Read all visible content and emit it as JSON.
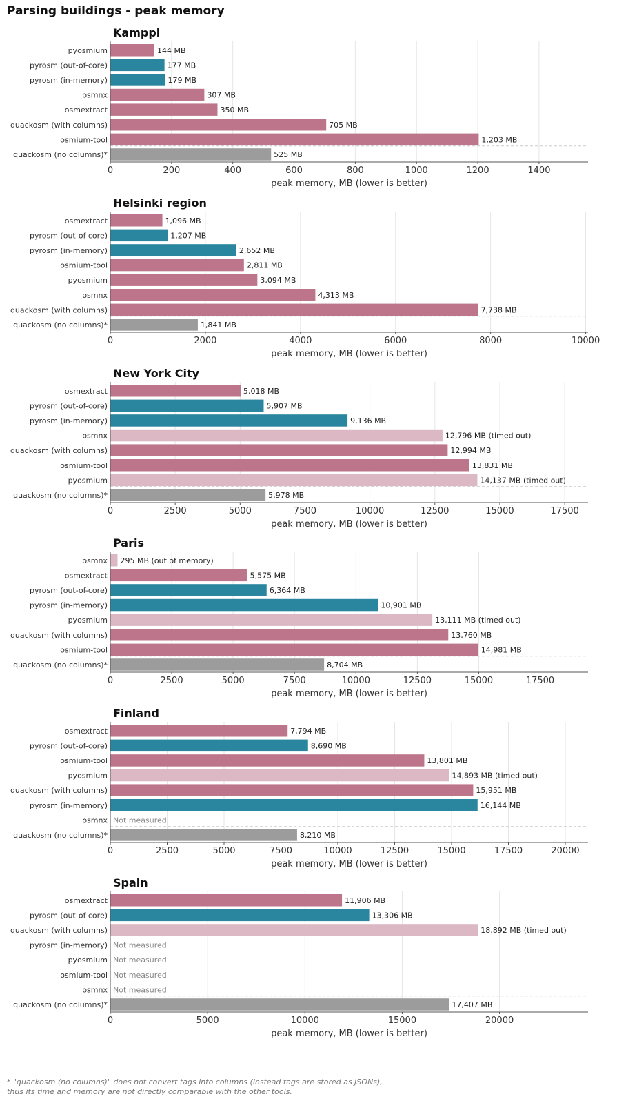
{
  "title": "Parsing buildings - peak memory",
  "footnote": [
    "* \"quackosm (no columns)\" does not convert tags into columns (instead tags are stored as JSONs),",
    "thus its time and memory are not directly comparable with the other tools."
  ],
  "colors": {
    "pink": "#bd758b",
    "pink_light": "#dcb8c4",
    "teal": "#2a869f",
    "grey": "#9c9c9c",
    "grid": "#e6e6e6",
    "axis": "#555555"
  },
  "chart_data": [
    {
      "type": "bar",
      "orientation": "horizontal",
      "title": "Kamppi",
      "xlabel": "peak memory, MB (lower is better)",
      "xlim": [
        0,
        1560
      ],
      "xticks": [
        0,
        200,
        400,
        600,
        800,
        1000,
        1200,
        1400
      ],
      "grid": "x",
      "categories": [
        "pyosmium",
        "pyrosm (out-of-core)",
        "pyrosm (in-memory)",
        "osmnx",
        "osmextract",
        "quackosm (with columns)",
        "osmium-tool",
        "quackosm (no columns)*"
      ],
      "values": [
        144,
        177,
        179,
        307,
        350,
        705,
        1203,
        525
      ],
      "labels": [
        "144 MB",
        "177 MB",
        "179 MB",
        "307 MB",
        "350 MB",
        "705 MB",
        "1,203 MB",
        "525 MB"
      ],
      "colors": [
        "pink",
        "teal",
        "teal",
        "pink",
        "pink",
        "pink",
        "pink",
        "grey"
      ]
    },
    {
      "type": "bar",
      "orientation": "horizontal",
      "title": "Helsinki region",
      "xlabel": "peak memory, MB (lower is better)",
      "xlim": [
        0,
        10050
      ],
      "xticks": [
        0,
        2000,
        4000,
        6000,
        8000,
        10000
      ],
      "grid": "x",
      "categories": [
        "osmextract",
        "pyrosm (out-of-core)",
        "pyrosm (in-memory)",
        "osmium-tool",
        "pyosmium",
        "osmnx",
        "quackosm (with columns)",
        "quackosm (no columns)*"
      ],
      "values": [
        1096,
        1207,
        2652,
        2811,
        3094,
        4313,
        7738,
        1841
      ],
      "labels": [
        "1,096 MB",
        "1,207 MB",
        "2,652 MB",
        "2,811 MB",
        "3,094 MB",
        "4,313 MB",
        "7,738 MB",
        "1,841 MB"
      ],
      "colors": [
        "pink",
        "teal",
        "teal",
        "pink",
        "pink",
        "pink",
        "pink",
        "grey"
      ]
    },
    {
      "type": "bar",
      "orientation": "horizontal",
      "title": "New York City",
      "xlabel": "peak memory, MB (lower is better)",
      "xlim": [
        0,
        18400
      ],
      "xticks": [
        0,
        2500,
        5000,
        7500,
        10000,
        12500,
        15000,
        17500
      ],
      "grid": "x",
      "categories": [
        "osmextract",
        "pyrosm (out-of-core)",
        "pyrosm (in-memory)",
        "osmnx",
        "quackosm (with columns)",
        "osmium-tool",
        "pyosmium",
        "quackosm (no columns)*"
      ],
      "values": [
        5018,
        5907,
        9136,
        12796,
        12994,
        13831,
        14137,
        5978
      ],
      "labels": [
        "5,018 MB",
        "5,907 MB",
        "9,136 MB",
        "12,796 MB (timed out)",
        "12,994 MB",
        "13,831 MB",
        "14,137 MB (timed out)",
        "5,978 MB"
      ],
      "colors": [
        "pink",
        "teal",
        "teal",
        "pink_light",
        "pink",
        "pink",
        "pink_light",
        "grey"
      ]
    },
    {
      "type": "bar",
      "orientation": "horizontal",
      "title": "Paris",
      "xlabel": "peak memory, MB (lower is better)",
      "xlim": [
        0,
        19450
      ],
      "xticks": [
        0,
        2500,
        5000,
        7500,
        10000,
        12500,
        15000,
        17500
      ],
      "grid": "x",
      "categories": [
        "osmnx",
        "osmextract",
        "pyrosm (out-of-core)",
        "pyrosm (in-memory)",
        "pyosmium",
        "quackosm (with columns)",
        "osmium-tool",
        "quackosm (no columns)*"
      ],
      "values": [
        295,
        5575,
        6364,
        10901,
        13111,
        13760,
        14981,
        8704
      ],
      "labels": [
        "295 MB (out of memory)",
        "5,575 MB",
        "6,364 MB",
        "10,901 MB",
        "13,111 MB (timed out)",
        "13,760 MB",
        "14,981 MB",
        "8,704 MB"
      ],
      "colors": [
        "pink_light",
        "pink",
        "teal",
        "teal",
        "pink_light",
        "pink",
        "pink",
        "grey"
      ]
    },
    {
      "type": "bar",
      "orientation": "horizontal",
      "title": "Finland",
      "xlabel": "peak memory, MB (lower is better)",
      "xlim": [
        0,
        21000
      ],
      "xticks": [
        0,
        2500,
        5000,
        7500,
        10000,
        12500,
        15000,
        17500,
        20000
      ],
      "grid": "x",
      "categories": [
        "osmextract",
        "pyrosm (out-of-core)",
        "osmium-tool",
        "pyosmium",
        "quackosm (with columns)",
        "pyrosm (in-memory)",
        "osmnx",
        "quackosm (no columns)*"
      ],
      "values": [
        7794,
        8690,
        13801,
        14893,
        15951,
        16144,
        null,
        8210
      ],
      "labels": [
        "7,794 MB",
        "8,690 MB",
        "13,801 MB",
        "14,893 MB (timed out)",
        "15,951 MB",
        "16,144 MB",
        "Not measured",
        "8,210 MB"
      ],
      "colors": [
        "pink",
        "teal",
        "pink",
        "pink_light",
        "pink",
        "teal",
        "pink",
        "grey"
      ]
    },
    {
      "type": "bar",
      "orientation": "horizontal",
      "title": "Spain",
      "xlabel": "peak memory, MB (lower is better)",
      "xlim": [
        0,
        24550
      ],
      "xticks": [
        0,
        5000,
        10000,
        15000,
        20000
      ],
      "grid": "x",
      "categories": [
        "osmextract",
        "pyrosm (out-of-core)",
        "quackosm (with columns)",
        "pyrosm (in-memory)",
        "pyosmium",
        "osmium-tool",
        "osmnx",
        "quackosm (no columns)*"
      ],
      "values": [
        11906,
        13306,
        18892,
        null,
        null,
        null,
        null,
        17407
      ],
      "labels": [
        "11,906 MB",
        "13,306 MB",
        "18,892 MB (timed out)",
        "Not measured",
        "Not measured",
        "Not measured",
        "Not measured",
        "17,407 MB"
      ],
      "colors": [
        "pink",
        "teal",
        "pink_light",
        "teal",
        "pink",
        "pink",
        "pink",
        "grey"
      ]
    }
  ]
}
